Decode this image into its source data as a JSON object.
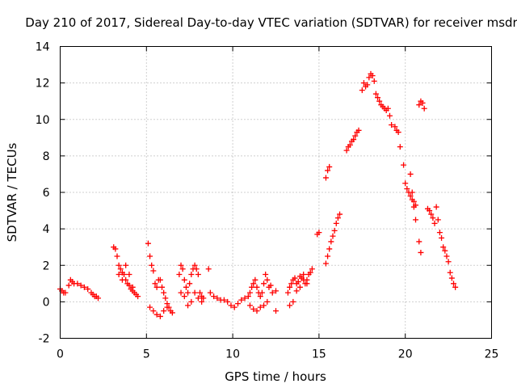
{
  "chart_data": {
    "type": "scatter",
    "title": "Day 210 of 2017, Sidereal Day-to-day VTEC variation (SDTVAR) for receiver msdr",
    "xlabel": "GPS time / hours",
    "ylabel": "SDTVAR / TECUs",
    "xlim": [
      0,
      25
    ],
    "ylim": [
      -2,
      14
    ],
    "xticks": [
      0,
      5,
      10,
      15,
      20,
      25
    ],
    "yticks": [
      -2,
      0,
      2,
      4,
      6,
      8,
      10,
      12,
      14
    ],
    "grid": true,
    "marker": "+",
    "marker_color": "#ff0000",
    "series": [
      {
        "name": "SDTVAR",
        "x": [
          0.0,
          0.1,
          0.2,
          0.3,
          0.5,
          0.6,
          0.7,
          0.8,
          1.0,
          1.2,
          1.4,
          1.6,
          1.8,
          1.9,
          2.0,
          2.1,
          2.2,
          3.1,
          3.2,
          3.3,
          3.4,
          3.5,
          3.6,
          3.7,
          3.8,
          3.9,
          4.0,
          4.1,
          4.2,
          4.3,
          4.4,
          4.5,
          3.4,
          3.6,
          3.8,
          4.0,
          4.2,
          5.1,
          5.2,
          5.3,
          5.4,
          5.5,
          5.6,
          5.7,
          5.8,
          5.9,
          6.0,
          6.1,
          6.2,
          6.3,
          6.4,
          6.5,
          5.2,
          5.4,
          5.6,
          5.8,
          6.0,
          6.2,
          6.9,
          7.0,
          7.1,
          7.2,
          7.3,
          7.4,
          7.5,
          7.6,
          7.7,
          7.8,
          7.9,
          8.0,
          8.1,
          8.2,
          8.3,
          7.0,
          7.2,
          7.4,
          7.6,
          7.8,
          8.0,
          8.2,
          8.6,
          8.7,
          8.9,
          9.1,
          9.3,
          9.5,
          9.7,
          9.9,
          10.1,
          10.3,
          10.5,
          10.7,
          10.9,
          11.0,
          11.1,
          11.2,
          11.3,
          11.4,
          11.5,
          11.6,
          11.7,
          11.8,
          11.9,
          12.0,
          12.1,
          12.2,
          12.3,
          12.5,
          11.0,
          11.2,
          11.4,
          11.6,
          11.8,
          12.0,
          12.5,
          13.2,
          13.3,
          13.4,
          13.5,
          13.6,
          13.7,
          13.8,
          13.9,
          14.0,
          14.1,
          14.2,
          14.3,
          14.4,
          14.5,
          14.6,
          13.3,
          13.5,
          13.7,
          13.9,
          14.1,
          14.3,
          14.9,
          15.0,
          15.4,
          15.5,
          15.6,
          15.7,
          15.8,
          15.9,
          16.0,
          16.1,
          16.2,
          15.4,
          15.5,
          15.6,
          16.6,
          16.7,
          16.8,
          16.9,
          17.0,
          17.1,
          17.2,
          17.3,
          17.5,
          17.6,
          17.7,
          17.8,
          17.9,
          18.0,
          18.1,
          18.2,
          18.3,
          18.4,
          18.5,
          18.6,
          18.7,
          18.8,
          18.9,
          19.0,
          19.1,
          19.2,
          19.4,
          19.5,
          19.6,
          19.7,
          19.9,
          20.0,
          20.1,
          20.2,
          20.3,
          20.4,
          20.5,
          20.6,
          20.3,
          20.4,
          20.5,
          20.6,
          20.8,
          20.9,
          21.0,
          21.1,
          20.8,
          20.9,
          21.3,
          21.4,
          21.5,
          21.6,
          21.7,
          21.8,
          21.9,
          22.0,
          22.1,
          22.2,
          22.3,
          22.4,
          22.5,
          22.6,
          22.7,
          22.8,
          22.9
        ],
        "y": [
          0.7,
          0.6,
          0.5,
          0.5,
          0.9,
          1.2,
          1.1,
          1.0,
          1.0,
          0.9,
          0.8,
          0.7,
          0.5,
          0.4,
          0.3,
          0.3,
          0.2,
          3.0,
          2.9,
          2.5,
          2.0,
          1.8,
          1.6,
          1.5,
          1.2,
          1.0,
          0.9,
          0.7,
          0.6,
          0.5,
          0.4,
          0.3,
          1.5,
          1.2,
          2.0,
          1.5,
          0.8,
          3.2,
          2.5,
          2.0,
          1.7,
          1.0,
          0.8,
          1.2,
          1.2,
          0.8,
          0.5,
          0.2,
          -0.1,
          -0.3,
          -0.5,
          -0.6,
          -0.3,
          -0.5,
          -0.7,
          -0.8,
          -0.5,
          -0.3,
          1.5,
          2.0,
          1.8,
          1.2,
          0.8,
          0.5,
          1.0,
          1.5,
          1.8,
          2.0,
          1.8,
          1.5,
          0.5,
          0.3,
          0.2,
          0.5,
          0.3,
          -0.2,
          0.0,
          0.5,
          0.2,
          0.0,
          1.8,
          0.5,
          0.3,
          0.2,
          0.1,
          0.1,
          0.0,
          -0.2,
          -0.3,
          -0.1,
          0.1,
          0.2,
          0.3,
          0.5,
          0.8,
          1.0,
          1.2,
          0.8,
          0.5,
          0.3,
          0.5,
          1.0,
          1.5,
          1.2,
          0.8,
          0.9,
          0.5,
          0.6,
          -0.2,
          -0.4,
          -0.5,
          -0.3,
          -0.2,
          0.0,
          -0.5,
          0.5,
          0.8,
          1.0,
          1.2,
          1.3,
          1.0,
          1.1,
          1.4,
          1.3,
          1.2,
          1.0,
          1.2,
          1.5,
          1.6,
          1.8,
          -0.2,
          0.0,
          0.6,
          0.8,
          1.5,
          1.0,
          3.7,
          3.8,
          2.1,
          2.5,
          2.9,
          3.3,
          3.6,
          3.9,
          4.3,
          4.6,
          4.8,
          6.8,
          7.2,
          7.4,
          8.3,
          8.5,
          8.6,
          8.8,
          8.9,
          9.1,
          9.3,
          9.4,
          11.6,
          12.0,
          11.8,
          11.9,
          12.3,
          12.5,
          12.4,
          12.1,
          11.4,
          11.2,
          11.0,
          10.8,
          10.7,
          10.6,
          10.5,
          10.6,
          10.2,
          9.7,
          9.6,
          9.4,
          9.3,
          8.5,
          7.5,
          6.5,
          6.2,
          6.0,
          5.8,
          5.6,
          5.2,
          4.5,
          7.0,
          6.0,
          5.5,
          5.3,
          10.8,
          11.0,
          10.9,
          10.6,
          3.3,
          2.7,
          5.1,
          5.0,
          4.8,
          4.6,
          4.3,
          5.2,
          4.5,
          3.8,
          3.5,
          3.0,
          2.8,
          2.5,
          2.2,
          1.6,
          1.3,
          1.0,
          0.8
        ]
      }
    ]
  }
}
